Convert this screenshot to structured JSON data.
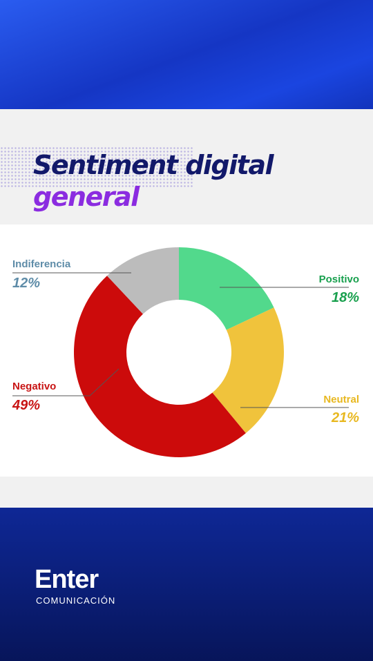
{
  "title": {
    "line1": "Sentiment digital",
    "line2": "general"
  },
  "chart_data": {
    "type": "pie",
    "subtype": "donut",
    "slices": [
      {
        "label": "Positivo",
        "value": 18,
        "display": "18%",
        "color": "#52d98c"
      },
      {
        "label": "Neutral",
        "value": 21,
        "display": "21%",
        "color": "#f0c33c"
      },
      {
        "label": "Negativo",
        "value": 49,
        "display": "49%",
        "color": "#cc0b0b"
      },
      {
        "label": "Indiferencia",
        "value": 12,
        "display": "12%",
        "color": "#bcbcbc"
      }
    ],
    "label_colors": {
      "Positivo": "#19a04e",
      "Neutral": "#e8b820",
      "Negativo": "#c81414",
      "Indiferencia": "#5e8ca8"
    }
  },
  "brand": {
    "name": "Enter",
    "tagline": "COMUNICACIÓN"
  }
}
